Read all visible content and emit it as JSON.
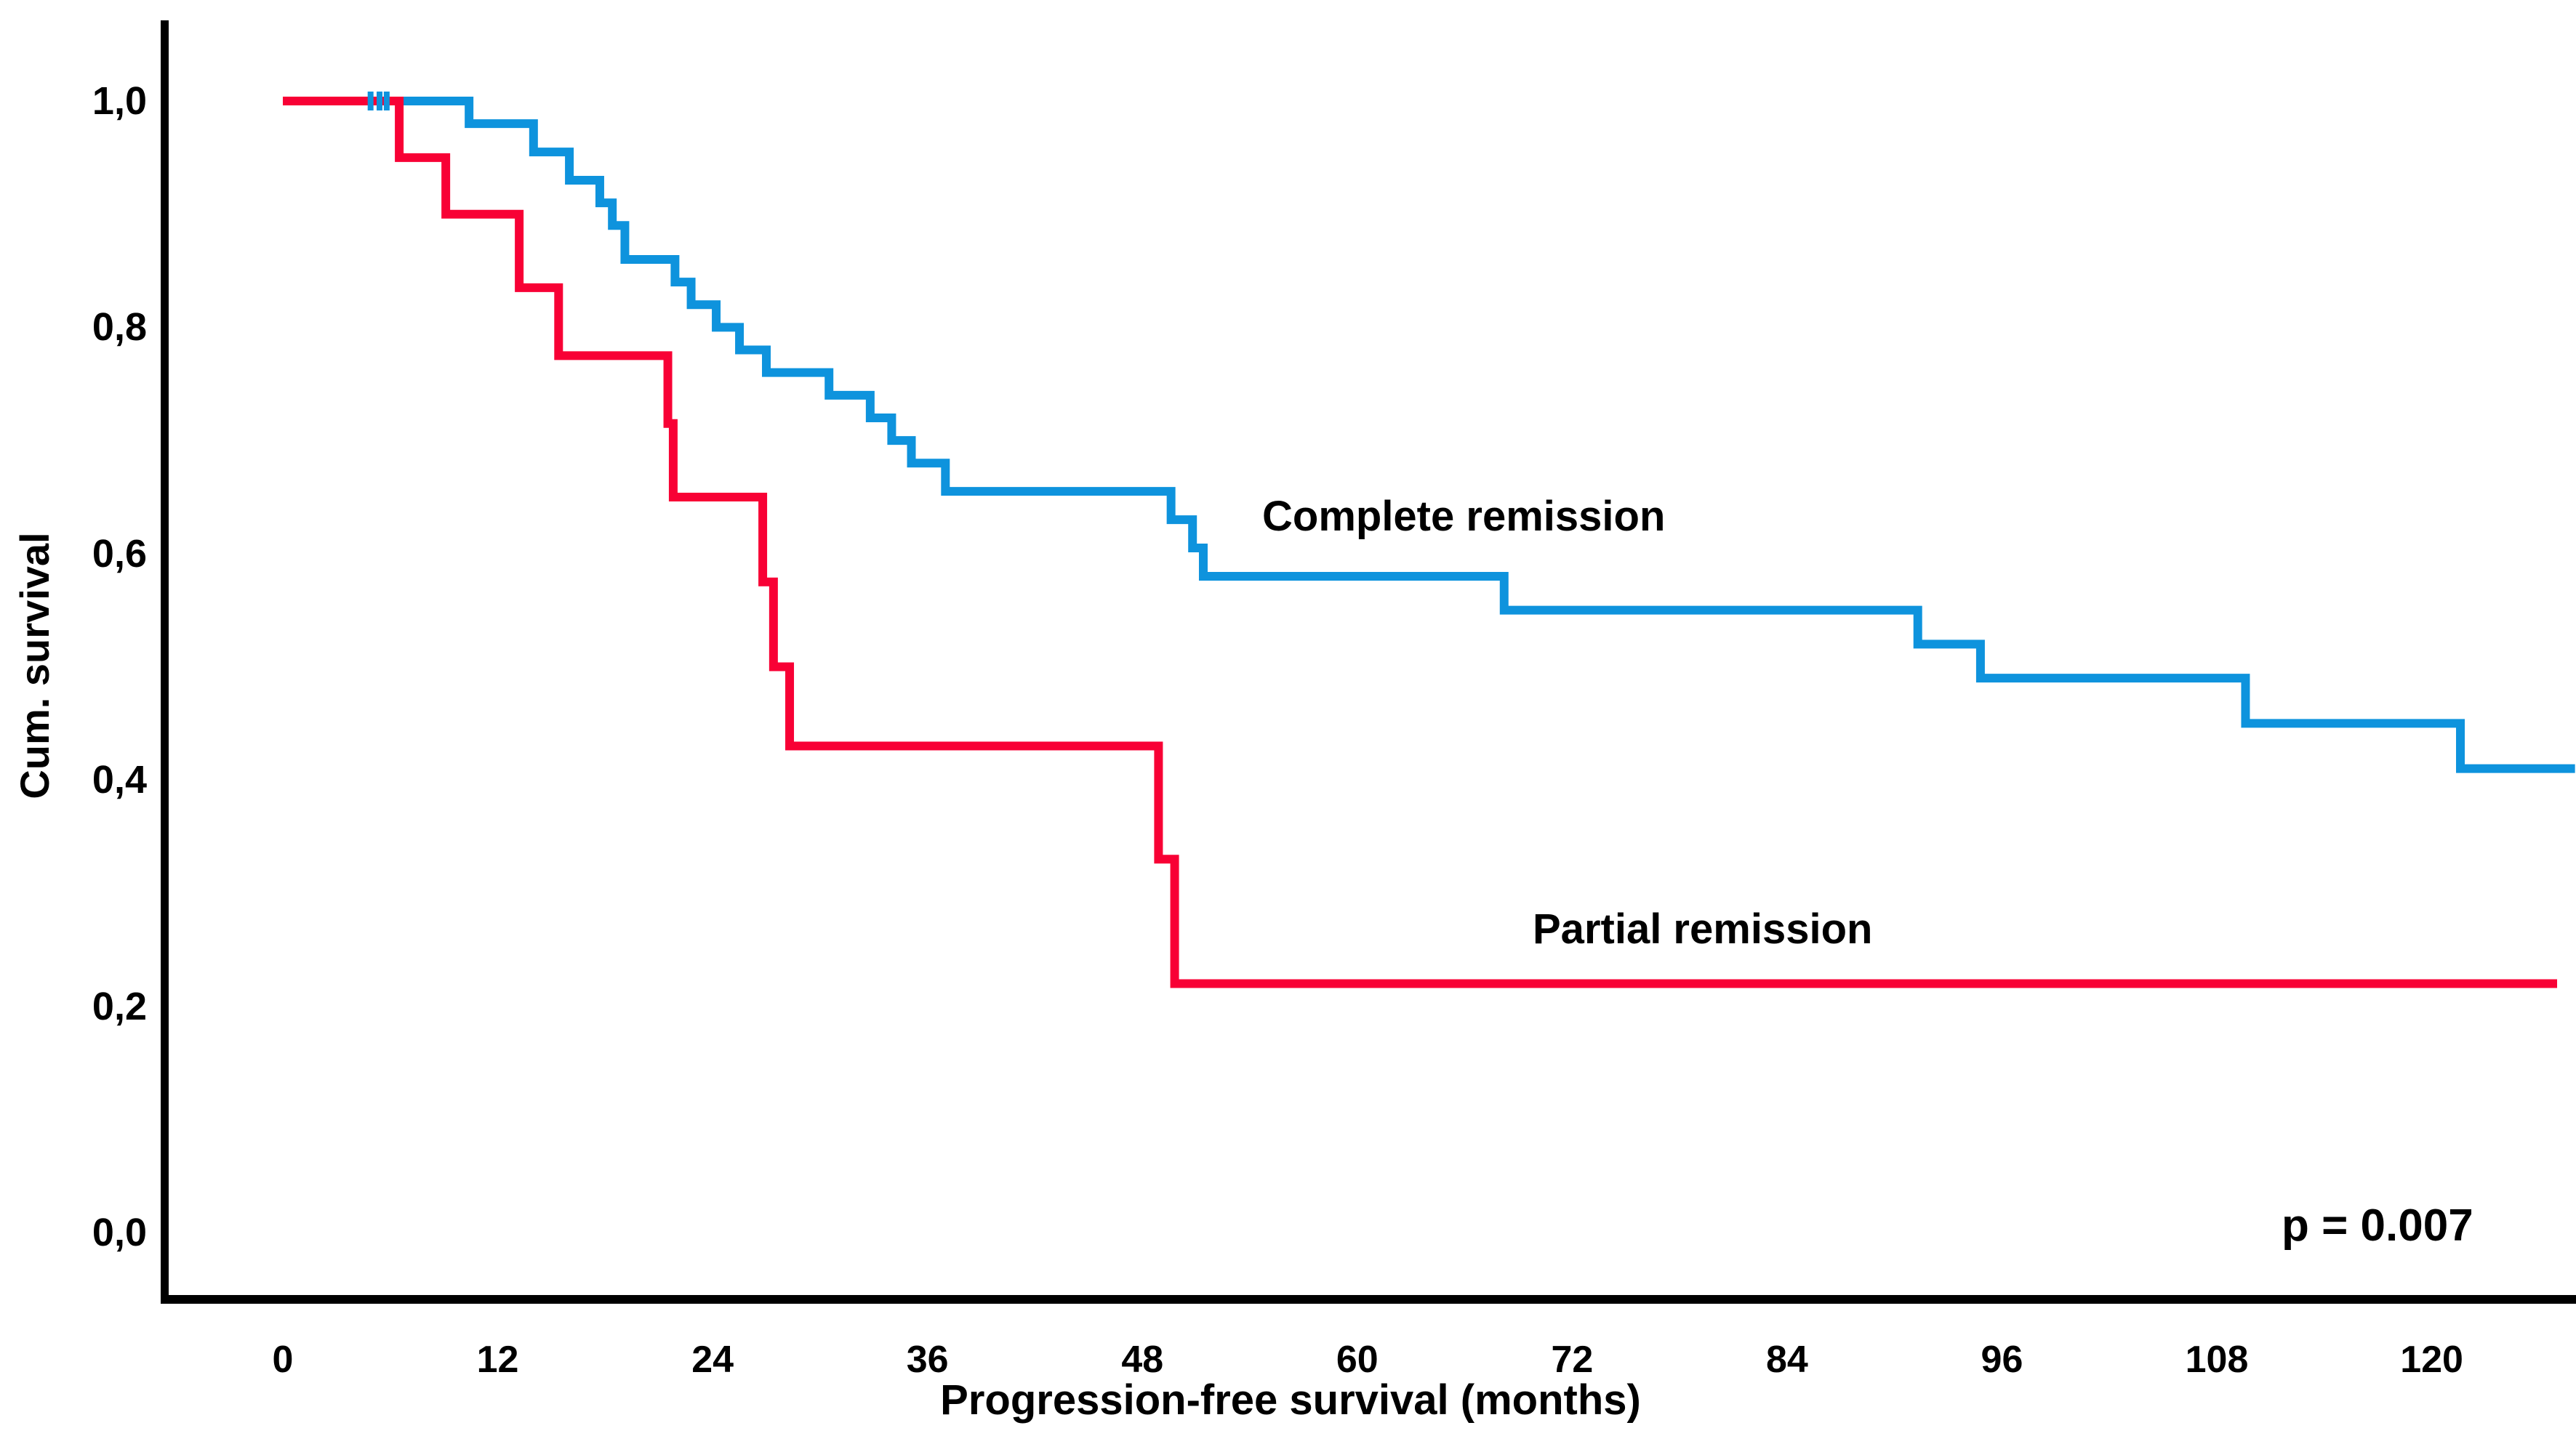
{
  "chart_data": {
    "type": "line",
    "subtype": "kaplan-meier-step",
    "title": "",
    "xlabel": "Progression-free survival (months)",
    "ylabel": "Cum. survival",
    "p_value_label": "p = 0.007",
    "x_ticks": [
      0,
      12,
      24,
      36,
      48,
      60,
      72,
      84,
      96,
      108,
      120
    ],
    "y_ticks": [
      {
        "value": 0.0,
        "label": "0,0"
      },
      {
        "value": 0.2,
        "label": "0,2"
      },
      {
        "value": 0.4,
        "label": "0,4"
      },
      {
        "value": 0.6,
        "label": "0,6"
      },
      {
        "value": 0.8,
        "label": "0,8"
      },
      {
        "value": 1.0,
        "label": "1,0"
      }
    ],
    "xlim": [
      0,
      128
    ],
    "ylim": [
      0.0,
      1.05
    ],
    "grid": false,
    "legend_position": "inline-annotations",
    "axis_color": "#000000",
    "series": [
      {
        "name": "Complete remission",
        "color": "#0E93DD",
        "end_month": 128,
        "censor_marks_months": [
          4.9,
          5.4,
          5.8
        ],
        "steps": [
          [
            0,
            1.0
          ],
          [
            10.4,
            0.98
          ],
          [
            14,
            0.955
          ],
          [
            16,
            0.93
          ],
          [
            17.7,
            0.91
          ],
          [
            18.4,
            0.89
          ],
          [
            19.1,
            0.86
          ],
          [
            21.9,
            0.84
          ],
          [
            22.8,
            0.82
          ],
          [
            24.2,
            0.8
          ],
          [
            25.5,
            0.78
          ],
          [
            27.0,
            0.76
          ],
          [
            30.5,
            0.74
          ],
          [
            32.8,
            0.72
          ],
          [
            34.0,
            0.7
          ],
          [
            35.1,
            0.68
          ],
          [
            37.0,
            0.655
          ],
          [
            49.6,
            0.63
          ],
          [
            50.8,
            0.605
          ],
          [
            51.4,
            0.58
          ],
          [
            68.2,
            0.55
          ],
          [
            91.3,
            0.52
          ],
          [
            94.8,
            0.49
          ],
          [
            109.6,
            0.45
          ],
          [
            121.6,
            0.41
          ]
        ]
      },
      {
        "name": "Partial remission",
        "color": "#F80135",
        "end_month": 127,
        "censor_marks_months": [],
        "steps": [
          [
            0,
            1.0
          ],
          [
            6.5,
            0.95
          ],
          [
            9.1,
            0.9
          ],
          [
            13.2,
            0.835
          ],
          [
            15.4,
            0.775
          ],
          [
            21.5,
            0.715
          ],
          [
            21.8,
            0.65
          ],
          [
            26.8,
            0.575
          ],
          [
            27.4,
            0.5
          ],
          [
            28.3,
            0.43
          ],
          [
            48.9,
            0.33
          ],
          [
            49.8,
            0.22
          ]
        ]
      }
    ]
  }
}
